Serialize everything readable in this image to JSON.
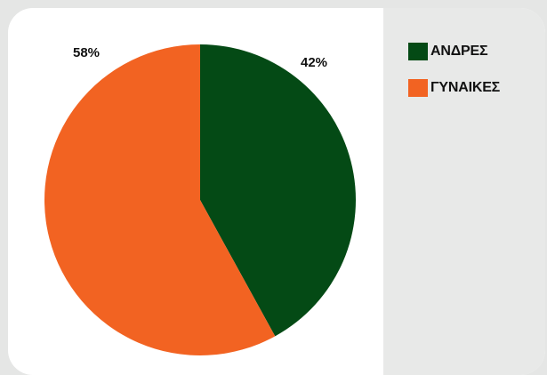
{
  "chart_data": {
    "type": "pie",
    "categories": [
      "ΑΝΔΡΕΣ",
      "ΓΥΝΑΙΚΕΣ"
    ],
    "values": [
      42,
      58
    ],
    "labels": [
      "42%",
      "58%"
    ],
    "colors": [
      "#044a15",
      "#f26322"
    ],
    "legend_position": "right",
    "start_angle_deg": 0,
    "direction": "clockwise"
  }
}
